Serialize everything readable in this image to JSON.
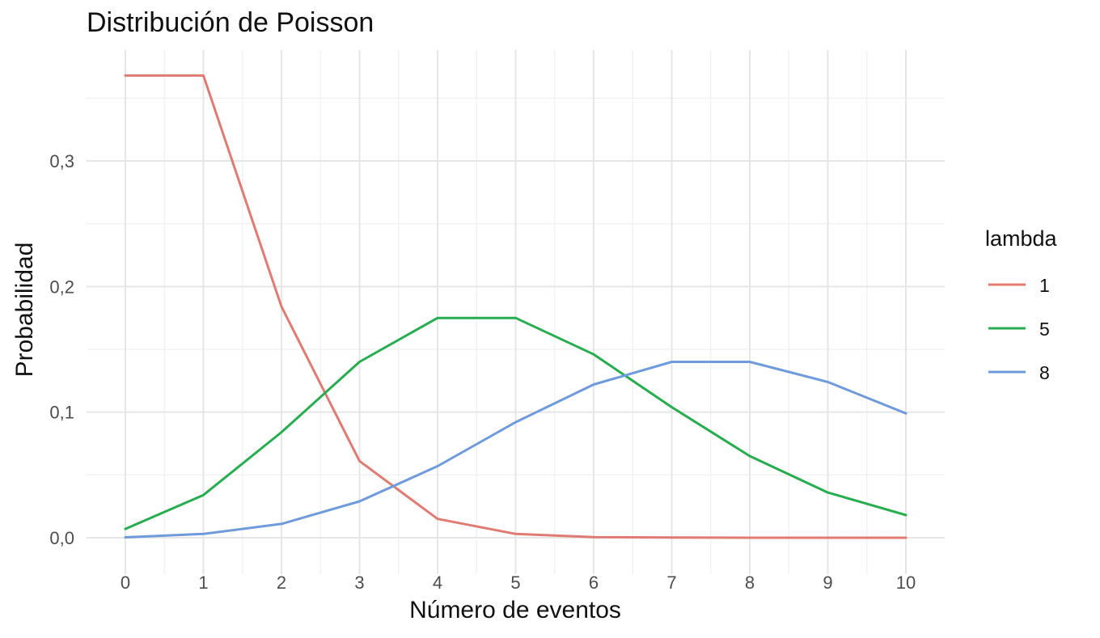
{
  "chart_data": {
    "type": "line",
    "title": "Distribución de Poisson",
    "xlabel": "Número de eventos",
    "ylabel": "Probabilidad",
    "x": [
      0,
      1,
      2,
      3,
      4,
      5,
      6,
      7,
      8,
      9,
      10
    ],
    "xlim": [
      0,
      10
    ],
    "ylim": [
      0,
      0.37
    ],
    "x_ticks": [
      "0",
      "1",
      "2",
      "3",
      "4",
      "5",
      "6",
      "7",
      "8",
      "9",
      "10"
    ],
    "y_ticks": [
      {
        "value": 0.0,
        "label": "0,0"
      },
      {
        "value": 0.1,
        "label": "0,1"
      },
      {
        "value": 0.2,
        "label": "0,2"
      },
      {
        "value": 0.3,
        "label": "0,3"
      }
    ],
    "grid": true,
    "legend": {
      "title": "lambda",
      "position": "right"
    },
    "series": [
      {
        "name": "1",
        "color": "#e07b73",
        "values": [
          0.368,
          0.368,
          0.184,
          0.061,
          0.015,
          0.003,
          0.0005,
          0.0001,
          0.0,
          0.0,
          0.0
        ]
      },
      {
        "name": "5",
        "color": "#27ad4f",
        "values": [
          0.007,
          0.034,
          0.084,
          0.14,
          0.175,
          0.175,
          0.146,
          0.104,
          0.065,
          0.036,
          0.018
        ]
      },
      {
        "name": "8",
        "color": "#6f9bdc",
        "values": [
          0.0003,
          0.003,
          0.011,
          0.029,
          0.057,
          0.092,
          0.122,
          0.14,
          0.14,
          0.124,
          0.099
        ]
      }
    ]
  }
}
